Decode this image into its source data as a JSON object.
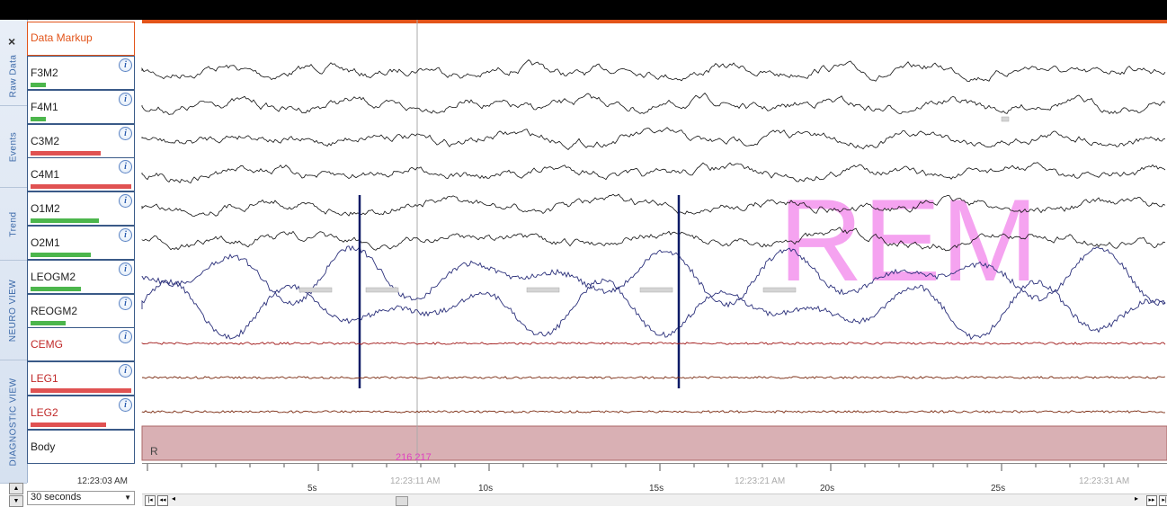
{
  "sidebar_tabs": [
    "Raw Data",
    "Events",
    "Trend",
    "NEURO VIEW",
    "DIAGNOSTIC VIEW"
  ],
  "data_markup_label": "Data Markup",
  "channels": [
    {
      "label": "F3M2",
      "label_color": "#222",
      "bar_color": "#4cb64c",
      "bar_fill": 0.15
    },
    {
      "label": "F4M1",
      "label_color": "#222",
      "bar_color": "#4cb64c",
      "bar_fill": 0.15
    },
    {
      "label": "C3M2",
      "label_color": "#222",
      "bar_color": "#e05252",
      "bar_fill": 0.7
    },
    {
      "label": "C4M1",
      "label_color": "#222",
      "bar_color": "#e05252",
      "bar_fill": 1.0
    },
    {
      "label": "O1M2",
      "label_color": "#222",
      "bar_color": "#4cb64c",
      "bar_fill": 0.68
    },
    {
      "label": "O2M1",
      "label_color": "#222",
      "bar_color": "#4cb64c",
      "bar_fill": 0.6
    },
    {
      "label": "LEOGM2",
      "label_color": "#222",
      "bar_color": "#4cb64c",
      "bar_fill": 0.5
    },
    {
      "label": "REOGM2",
      "label_color": "#222",
      "bar_color": "#4cb64c",
      "bar_fill": 0.35
    },
    {
      "label": "CEMG",
      "label_color": "#c02828",
      "bar_color": "#e05252",
      "bar_fill": 0.0
    },
    {
      "label": "LEG1",
      "label_color": "#c02828",
      "bar_color": "#e05252",
      "bar_fill": 1.0
    },
    {
      "label": "LEG2",
      "label_color": "#c02828",
      "bar_color": "#e05252",
      "bar_fill": 0.75
    },
    {
      "label": "Body",
      "label_color": "#222",
      "bar_color": "#e05252",
      "bar_fill": 0.0
    }
  ],
  "info_glyph": "i",
  "stage_text": "REM",
  "stage_colour": "#f5a3f0",
  "body_row_marker": "R",
  "epoch_numbers": "216  217",
  "start_time": "12:23:03 AM",
  "window_select": "30 seconds",
  "timeline": {
    "ticks": [
      "5s",
      "10s",
      "15s",
      "20s",
      "25s"
    ],
    "clocks": [
      "12:23:11 AM",
      "12:23:21 AM",
      "12:23:31 AM"
    ]
  }
}
